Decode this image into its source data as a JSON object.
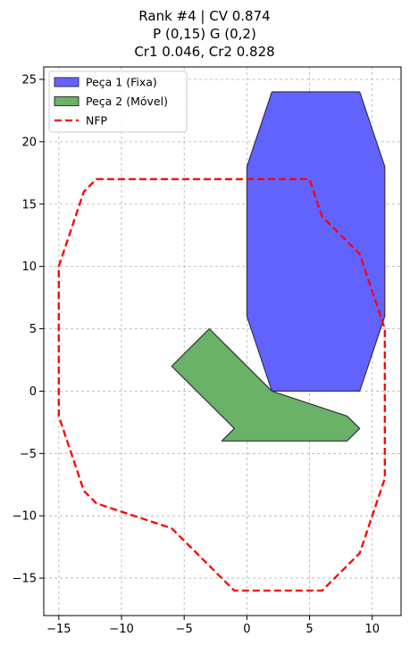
{
  "chart_data": {
    "type": "polygon-plot",
    "title_lines": [
      "Rank #4 | CV 0.874",
      "P (0,15) G (0,2)",
      "Cr1 0.046, Cr2 0.828"
    ],
    "xlim": [
      -16.2,
      12.3
    ],
    "ylim": [
      -18,
      26
    ],
    "x_ticks": [
      -15,
      -10,
      -5,
      0,
      5,
      10
    ],
    "x_tick_labels": [
      "−15",
      "−10",
      "−5",
      "0",
      "5",
      "10"
    ],
    "y_ticks": [
      -15,
      -10,
      -5,
      0,
      5,
      10,
      15,
      20,
      25
    ],
    "y_tick_labels": [
      "−15",
      "−10",
      "−5",
      "0",
      "5",
      "10",
      "15",
      "20",
      "25"
    ],
    "grid": true,
    "legend_position": "upper-left",
    "series": [
      {
        "name": "Peça 1 (Fixa)",
        "kind": "filled-polygon",
        "fill": "#6262ff",
        "stroke": "#333355",
        "points": [
          [
            2,
            24
          ],
          [
            9,
            24
          ],
          [
            11,
            18
          ],
          [
            11,
            6
          ],
          [
            9,
            0
          ],
          [
            2,
            0
          ],
          [
            0,
            6
          ],
          [
            0,
            18
          ]
        ]
      },
      {
        "name": "Peça 2 (Móvel)",
        "kind": "filled-polygon",
        "fill": "#69b268",
        "stroke": "#333333",
        "points": [
          [
            -3,
            5
          ],
          [
            2,
            0
          ],
          [
            8,
            -2
          ],
          [
            9,
            -3
          ],
          [
            8,
            -4
          ],
          [
            -2,
            -4
          ],
          [
            -1,
            -3
          ],
          [
            -6,
            2
          ]
        ]
      },
      {
        "name": "NFP",
        "kind": "dashed-polygon",
        "stroke": "#ff0000",
        "points": [
          [
            -12,
            17
          ],
          [
            5,
            17
          ],
          [
            6,
            14
          ],
          [
            9,
            11
          ],
          [
            11,
            5
          ],
          [
            11,
            -7
          ],
          [
            9,
            -13
          ],
          [
            6,
            -16
          ],
          [
            -1,
            -16
          ],
          [
            -6,
            -11
          ],
          [
            -12,
            -9
          ],
          [
            -13,
            -8
          ],
          [
            -15,
            -2
          ],
          [
            -15,
            10
          ],
          [
            -13,
            16
          ]
        ]
      }
    ]
  }
}
